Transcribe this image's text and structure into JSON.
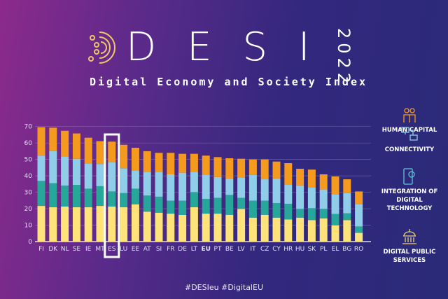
{
  "header": {
    "title": "DESI",
    "subtitle": "Digital Economy and Society Index",
    "year": "2022"
  },
  "footer": {
    "hashtags": "#DESIeu #DigitalEU"
  },
  "legend": [
    {
      "label": "HUMAN CAPITAL",
      "color": "#f39a1f",
      "icon": "people-icon"
    },
    {
      "label": "CONNECTIVITY",
      "color": "#8fcde8",
      "icon": "computers-network-icon"
    },
    {
      "label": "INTEGRATION OF DIGITAL TECHNOLOGY",
      "color": "#26a79a",
      "icon": "phone-gear-icon"
    },
    {
      "label": "DIGITAL PUBLIC SERVICES",
      "color": "#fde37a",
      "icon": "government-building-icon"
    }
  ],
  "chart_data": {
    "type": "bar",
    "stacked": true,
    "ylim": [
      0,
      70
    ],
    "yticks": [
      0,
      10,
      20,
      30,
      40,
      50,
      60,
      70
    ],
    "grid": true,
    "highlighted_category": "ES",
    "emphasized_category": "EU",
    "categories": [
      "FI",
      "DK",
      "NL",
      "SE",
      "IE",
      "MT",
      "ES",
      "LU",
      "EE",
      "AT",
      "SI",
      "FR",
      "DE",
      "LT",
      "EU",
      "PT",
      "BE",
      "LV",
      "IT",
      "CZ",
      "CY",
      "HR",
      "HU",
      "SK",
      "PL",
      "EL",
      "BG",
      "RO"
    ],
    "series": [
      {
        "name": "DIGITAL PUBLIC SERVICES",
        "color": "#fde37a",
        "values": [
          21.7,
          20.9,
          21.3,
          20.9,
          20.9,
          21.7,
          21.3,
          20.9,
          22.7,
          18.2,
          17.6,
          17.0,
          16.2,
          20.9,
          17.0,
          17.0,
          16.3,
          19.9,
          14.6,
          16.3,
          14.6,
          13.5,
          14.6,
          13.1,
          14.1,
          9.9,
          13.1,
          5.3
        ]
      },
      {
        "name": "INTEGRATION OF DIGITAL TECHNOLOGY",
        "color": "#26a79a",
        "values": [
          15.2,
          14.6,
          12.8,
          13.6,
          11.3,
          12.0,
          9.2,
          8.6,
          9.5,
          9.8,
          9.7,
          7.9,
          8.7,
          9.2,
          9.0,
          9.6,
          12.1,
          6.7,
          10.3,
          8.6,
          8.8,
          9.5,
          5.3,
          7.2,
          5.8,
          6.9,
          4.1,
          3.9
        ]
      },
      {
        "name": "CONNECTIVITY",
        "color": "#8fcde8",
        "values": [
          15.4,
          19.5,
          17.7,
          15.9,
          15.4,
          13.5,
          17.8,
          15.1,
          11.1,
          14.5,
          15.2,
          16.0,
          17.0,
          12.4,
          14.8,
          12.7,
          10.0,
          12.5,
          15.6,
          13.0,
          15.0,
          11.5,
          14.3,
          12.5,
          11.8,
          12.0,
          12.3,
          13.7
        ]
      },
      {
        "name": "HUMAN CAPITAL",
        "color": "#f39a1f",
        "values": [
          17.3,
          14.3,
          15.6,
          15.4,
          15.6,
          13.9,
          12.5,
          14.3,
          13.8,
          12.5,
          11.5,
          13.1,
          11.5,
          10.9,
          11.5,
          12.1,
          12.3,
          11.3,
          9.5,
          12.1,
          10.3,
          13.2,
          10.1,
          11.0,
          9.2,
          10.8,
          8.4,
          7.6
        ]
      }
    ]
  }
}
